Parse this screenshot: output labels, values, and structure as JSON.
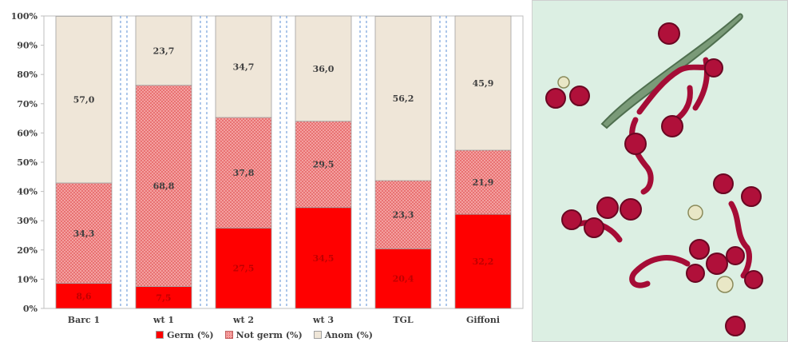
{
  "chart_data": {
    "type": "bar",
    "stacked": true,
    "normalized_percent": true,
    "categories": [
      "Barc 1",
      "wt 1",
      "wt 2",
      "wt 3",
      "TGL",
      "Giffoni"
    ],
    "series": [
      {
        "name": "Germ (%)",
        "values": [
          8.6,
          7.5,
          27.5,
          34.5,
          20.4,
          32.2
        ],
        "labels": [
          "8,6",
          "7,5",
          "27,5",
          "34,5",
          "20,4",
          "32,2"
        ],
        "color": "#ff0000",
        "label_color": "#c00000"
      },
      {
        "name": "Not germ (%)",
        "values": [
          34.3,
          68.8,
          37.8,
          29.5,
          23.3,
          21.9
        ],
        "labels": [
          "34,3",
          "68,8",
          "37,8",
          "29,5",
          "23,3",
          "21,9"
        ],
        "color": "#f08a8a",
        "label_color": "#404040"
      },
      {
        "name": "Anom (%)",
        "values": [
          57.0,
          23.7,
          34.7,
          36.0,
          56.2,
          45.9
        ],
        "labels": [
          "57,0",
          "23,7",
          "34,7",
          "36,0",
          "56,2",
          "45,9"
        ],
        "color": "#efe6d8",
        "label_color": "#404040"
      }
    ],
    "yticks": [
      "0%",
      "10%",
      "20%",
      "30%",
      "40%",
      "50%",
      "60%",
      "70%",
      "80%",
      "90%",
      "100%"
    ],
    "ylim": [
      0,
      100
    ],
    "grid": "dashed vertical separators between categories",
    "legend": "bottom"
  },
  "photo": {
    "subject": "microscope image of red stained pollen grains with germination tubes",
    "background_color": "#dcefe3",
    "grain_color": "#b0103a"
  }
}
